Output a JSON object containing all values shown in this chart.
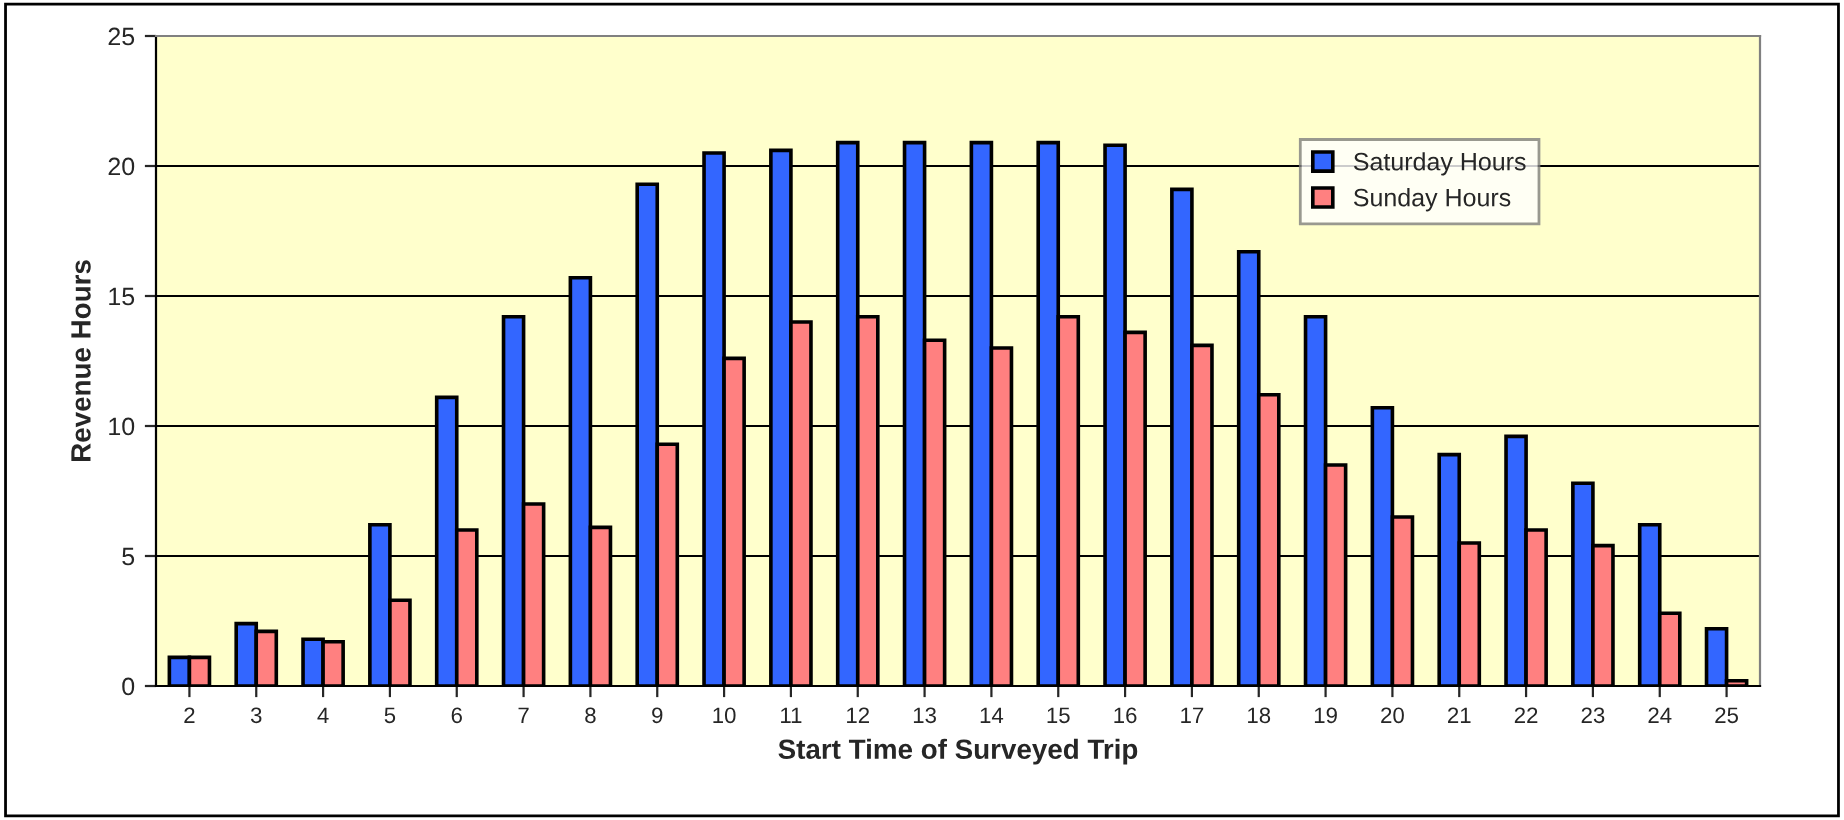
{
  "chart_data": {
    "type": "bar",
    "xlabel": "Start Time of Surveyed Trip",
    "ylabel": "Revenue Hours",
    "categories": [
      "2",
      "3",
      "4",
      "5",
      "6",
      "7",
      "8",
      "9",
      "10",
      "11",
      "12",
      "13",
      "14",
      "15",
      "16",
      "17",
      "18",
      "19",
      "20",
      "21",
      "22",
      "23",
      "24",
      "25"
    ],
    "series": [
      {
        "name": "Saturday Hours",
        "color": "#3366ff",
        "values": [
          1.1,
          2.4,
          1.8,
          6.2,
          11.1,
          14.2,
          15.7,
          19.3,
          20.5,
          20.6,
          20.9,
          20.9,
          20.9,
          20.9,
          20.8,
          19.1,
          16.7,
          14.2,
          10.7,
          8.9,
          9.6,
          7.8,
          6.2,
          2.2
        ]
      },
      {
        "name": "Sunday Hours",
        "color": "#ff8080",
        "values": [
          1.1,
          2.1,
          1.7,
          3.3,
          6.0,
          7.0,
          6.1,
          9.3,
          12.6,
          14.0,
          14.2,
          13.3,
          13.0,
          14.2,
          13.6,
          13.1,
          11.2,
          8.5,
          6.5,
          5.5,
          6.0,
          5.4,
          2.8,
          0.2
        ]
      }
    ],
    "ylim": [
      0,
      25
    ],
    "yticks": [
      0,
      5,
      10,
      15,
      20,
      25
    ],
    "grid": "y",
    "legend": "top right"
  }
}
